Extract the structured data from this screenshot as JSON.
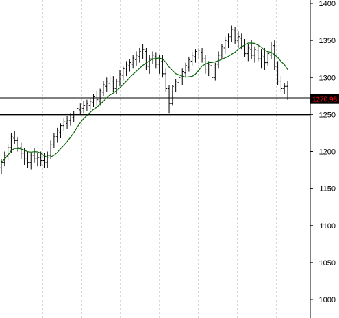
{
  "chart_data": {
    "type": "ohlc",
    "title": "",
    "xlabel": "",
    "ylabel": "",
    "ylim": [
      985,
      1405
    ],
    "yticks": [
      1000,
      1050,
      1100,
      1150,
      1200,
      1250,
      1300,
      1350,
      1400
    ],
    "vertical_gridlines": 8,
    "horizontal_lines": [
      1272,
      1250
    ],
    "current_price": "1270.98",
    "colors": {
      "bars": "#000000",
      "moving_average": "#006400",
      "price_tag_bg": "#000000",
      "price_tag_text": "#ff0000",
      "grid": "#b0b0b0"
    },
    "series": [
      {
        "values": [
          [
            1178,
            1190,
            1170,
            1185
          ],
          [
            1185,
            1200,
            1180,
            1195
          ],
          [
            1195,
            1210,
            1188,
            1205
          ],
          [
            1205,
            1225,
            1198,
            1220
          ],
          [
            1218,
            1228,
            1210,
            1215
          ],
          [
            1215,
            1220,
            1200,
            1205
          ],
          [
            1205,
            1212,
            1190,
            1198
          ],
          [
            1198,
            1205,
            1182,
            1190
          ],
          [
            1190,
            1200,
            1178,
            1185
          ],
          [
            1185,
            1198,
            1176,
            1195
          ],
          [
            1195,
            1205,
            1185,
            1190
          ],
          [
            1190,
            1198,
            1180,
            1192
          ],
          [
            1192,
            1200,
            1180,
            1188
          ],
          [
            1188,
            1198,
            1178,
            1185
          ],
          [
            1185,
            1200,
            1178,
            1195
          ],
          [
            1195,
            1215,
            1190,
            1210
          ],
          [
            1210,
            1225,
            1205,
            1220
          ],
          [
            1220,
            1232,
            1212,
            1228
          ],
          [
            1226,
            1238,
            1218,
            1235
          ],
          [
            1235,
            1245,
            1228,
            1240
          ],
          [
            1238,
            1248,
            1230,
            1242
          ],
          [
            1242,
            1252,
            1235,
            1248
          ],
          [
            1246,
            1255,
            1240,
            1250
          ],
          [
            1250,
            1262,
            1244,
            1258
          ],
          [
            1256,
            1265,
            1250,
            1260
          ],
          [
            1258,
            1268,
            1252,
            1262
          ],
          [
            1260,
            1270,
            1255,
            1265
          ],
          [
            1262,
            1272,
            1256,
            1268
          ],
          [
            1266,
            1278,
            1260,
            1274
          ],
          [
            1272,
            1282,
            1262,
            1270
          ],
          [
            1268,
            1285,
            1262,
            1282
          ],
          [
            1280,
            1295,
            1275,
            1290
          ],
          [
            1288,
            1300,
            1280,
            1295
          ],
          [
            1292,
            1305,
            1285,
            1298
          ],
          [
            1295,
            1302,
            1280,
            1285
          ],
          [
            1285,
            1298,
            1278,
            1295
          ],
          [
            1295,
            1310,
            1288,
            1305
          ],
          [
            1303,
            1315,
            1296,
            1312
          ],
          [
            1310,
            1322,
            1302,
            1318
          ],
          [
            1316,
            1325,
            1308,
            1320
          ],
          [
            1318,
            1330,
            1312,
            1326
          ],
          [
            1324,
            1335,
            1316,
            1330
          ],
          [
            1328,
            1340,
            1320,
            1335
          ],
          [
            1333,
            1345,
            1325,
            1338
          ],
          [
            1335,
            1340,
            1310,
            1315
          ],
          [
            1315,
            1330,
            1305,
            1325
          ],
          [
            1325,
            1335,
            1318,
            1330
          ],
          [
            1328,
            1334,
            1312,
            1318
          ],
          [
            1318,
            1330,
            1305,
            1325
          ],
          [
            1322,
            1330,
            1300,
            1305
          ],
          [
            1305,
            1312,
            1280,
            1285
          ],
          [
            1285,
            1290,
            1252,
            1265
          ],
          [
            1265,
            1290,
            1262,
            1288
          ],
          [
            1286,
            1298,
            1280,
            1295
          ],
          [
            1293,
            1305,
            1288,
            1300
          ],
          [
            1298,
            1312,
            1290,
            1308
          ],
          [
            1306,
            1320,
            1300,
            1316
          ],
          [
            1314,
            1328,
            1308,
            1324
          ],
          [
            1322,
            1335,
            1316,
            1330
          ],
          [
            1328,
            1338,
            1320,
            1335
          ],
          [
            1333,
            1340,
            1325,
            1336
          ],
          [
            1334,
            1340,
            1320,
            1325
          ],
          [
            1325,
            1330,
            1305,
            1310
          ],
          [
            1310,
            1322,
            1302,
            1318
          ],
          [
            1316,
            1326,
            1295,
            1300
          ],
          [
            1300,
            1320,
            1296,
            1318
          ],
          [
            1318,
            1335,
            1312,
            1330
          ],
          [
            1330,
            1345,
            1325,
            1342
          ],
          [
            1340,
            1355,
            1332,
            1350
          ],
          [
            1348,
            1360,
            1340,
            1355
          ],
          [
            1355,
            1370,
            1348,
            1365
          ],
          [
            1363,
            1368,
            1345,
            1350
          ],
          [
            1350,
            1362,
            1340,
            1355
          ],
          [
            1353,
            1360,
            1338,
            1345
          ],
          [
            1345,
            1352,
            1328,
            1332
          ],
          [
            1332,
            1345,
            1322,
            1340
          ],
          [
            1338,
            1350,
            1325,
            1330
          ],
          [
            1330,
            1342,
            1320,
            1338
          ],
          [
            1336,
            1345,
            1322,
            1325
          ],
          [
            1325,
            1338,
            1312,
            1330
          ],
          [
            1328,
            1340,
            1310,
            1320
          ],
          [
            1320,
            1335,
            1316,
            1332
          ],
          [
            1330,
            1348,
            1325,
            1345
          ],
          [
            1343,
            1350,
            1310,
            1315
          ],
          [
            1315,
            1322,
            1290,
            1295
          ],
          [
            1295,
            1302,
            1280,
            1285
          ],
          [
            1285,
            1292,
            1278,
            1288
          ],
          [
            1288,
            1295,
            1270,
            1272
          ]
        ]
      }
    ]
  }
}
